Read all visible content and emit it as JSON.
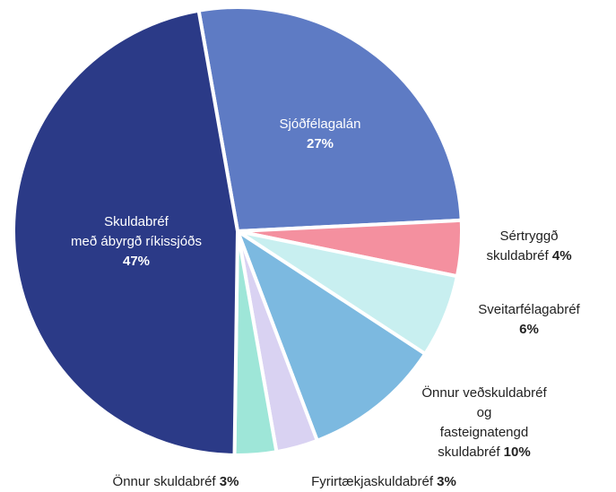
{
  "chart_data": {
    "type": "pie",
    "categories": [
      "Sjóðfélagalán",
      "Sértryggð\nskuldabréf",
      "Sveitarfélagabréf",
      "Önnur veðskuldabréf og\nfasteignatengd skuldabréf",
      "Fyrirtækjaskuldabréf",
      "Önnur skuldabréf",
      "Skuldabréf\nmeð ábyrgð ríkissjóðs"
    ],
    "values": [
      27,
      4,
      6,
      10,
      3,
      3,
      47
    ],
    "value_labels": [
      "27%",
      "4%",
      "6%",
      "10%",
      "3%",
      "3%",
      "47%"
    ],
    "colors": [
      "#5e7bc4",
      "#f4909f",
      "#c8eff0",
      "#7cb9e0",
      "#d9d2f2",
      "#9ee6d8",
      "#2b3a87"
    ]
  }
}
